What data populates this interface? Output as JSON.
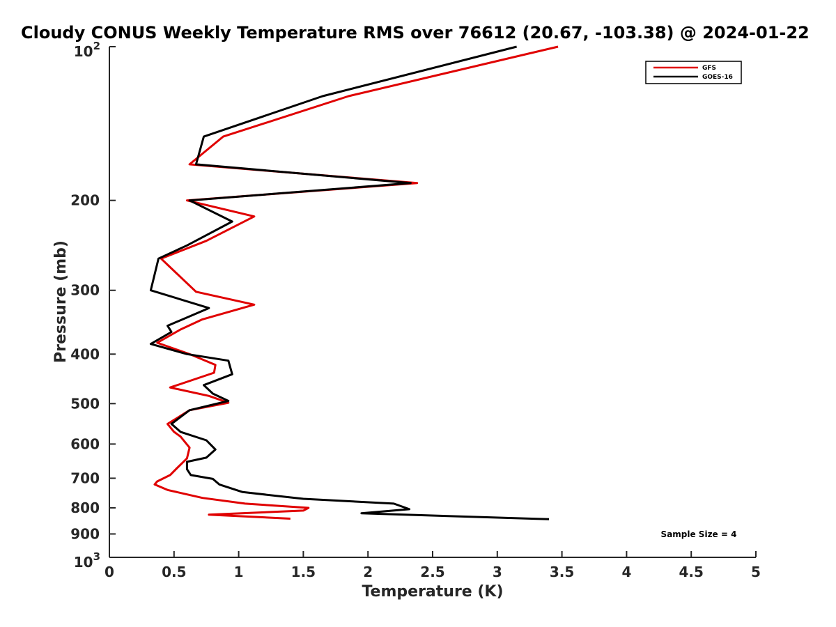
{
  "chart_data": {
    "type": "line",
    "title": "Cloudy CONUS Weekly Temperature RMS over 76612 (20.67, -103.38) @ 2024-01-22",
    "xlabel": "Temperature (K)",
    "ylabel": "Pressure (mb)",
    "xlim": [
      0,
      5
    ],
    "ylim": [
      100,
      1000
    ],
    "yscale": "log",
    "y_reversed": true,
    "xticks": [
      "0",
      "0.5",
      "1",
      "1.5",
      "2",
      "2.5",
      "3",
      "3.5",
      "4",
      "4.5",
      "5"
    ],
    "xtick_values": [
      0,
      0.5,
      1,
      1.5,
      2,
      2.5,
      3,
      3.5,
      4,
      4.5,
      5
    ],
    "yticks": [
      {
        "value": 100,
        "base": "10",
        "exp": "2"
      },
      {
        "value": 200,
        "label": "200"
      },
      {
        "value": 300,
        "label": "300"
      },
      {
        "value": 400,
        "label": "400"
      },
      {
        "value": 500,
        "label": "500"
      },
      {
        "value": 600,
        "label": "600"
      },
      {
        "value": 700,
        "label": "700"
      },
      {
        "value": 800,
        "label": "800"
      },
      {
        "value": 900,
        "label": "900"
      },
      {
        "value": 1000,
        "base": "10",
        "exp": "3"
      }
    ],
    "legend_position": "top-right",
    "series": [
      {
        "name": "GFS",
        "color": "#e00000",
        "points": [
          [
            3.47,
            100
          ],
          [
            1.85,
            125
          ],
          [
            0.88,
            150
          ],
          [
            0.62,
            170
          ],
          [
            2.38,
            185
          ],
          [
            0.6,
            200
          ],
          [
            1.12,
            215
          ],
          [
            0.75,
            240
          ],
          [
            0.4,
            260
          ],
          [
            0.67,
            302
          ],
          [
            1.12,
            320
          ],
          [
            0.72,
            342
          ],
          [
            0.55,
            358
          ],
          [
            0.37,
            380
          ],
          [
            0.62,
            400
          ],
          [
            0.82,
            420
          ],
          [
            0.81,
            435
          ],
          [
            0.47,
            465
          ],
          [
            0.77,
            483
          ],
          [
            0.92,
            498
          ],
          [
            0.62,
            515
          ],
          [
            0.45,
            548
          ],
          [
            0.5,
            568
          ],
          [
            0.55,
            580
          ],
          [
            0.62,
            610
          ],
          [
            0.6,
            640
          ],
          [
            0.52,
            670
          ],
          [
            0.47,
            690
          ],
          [
            0.37,
            710
          ],
          [
            0.35,
            720
          ],
          [
            0.45,
            738
          ],
          [
            0.72,
            765
          ],
          [
            1.05,
            785
          ],
          [
            1.54,
            800
          ],
          [
            1.5,
            810
          ],
          [
            0.77,
            825
          ],
          [
            1.4,
            840
          ]
        ]
      },
      {
        "name": "GOES-16",
        "color": "#000000",
        "points": [
          [
            3.15,
            100
          ],
          [
            1.65,
            125
          ],
          [
            0.73,
            150
          ],
          [
            0.67,
            170
          ],
          [
            2.33,
            185
          ],
          [
            0.62,
            200
          ],
          [
            0.95,
            220
          ],
          [
            0.6,
            245
          ],
          [
            0.38,
            260
          ],
          [
            0.32,
            300
          ],
          [
            0.77,
            325
          ],
          [
            0.45,
            352
          ],
          [
            0.48,
            362
          ],
          [
            0.32,
            382
          ],
          [
            0.6,
            400
          ],
          [
            0.92,
            412
          ],
          [
            0.95,
            438
          ],
          [
            0.73,
            460
          ],
          [
            0.8,
            478
          ],
          [
            0.92,
            494
          ],
          [
            0.62,
            515
          ],
          [
            0.48,
            548
          ],
          [
            0.55,
            568
          ],
          [
            0.75,
            590
          ],
          [
            0.82,
            615
          ],
          [
            0.75,
            638
          ],
          [
            0.6,
            650
          ],
          [
            0.6,
            672
          ],
          [
            0.63,
            690
          ],
          [
            0.8,
            702
          ],
          [
            0.85,
            720
          ],
          [
            1.03,
            745
          ],
          [
            1.5,
            768
          ],
          [
            2.2,
            785
          ],
          [
            2.32,
            805
          ],
          [
            1.95,
            820
          ],
          [
            3.4,
            842
          ]
        ]
      }
    ],
    "annotations": [
      "Sample Size = 4"
    ]
  }
}
